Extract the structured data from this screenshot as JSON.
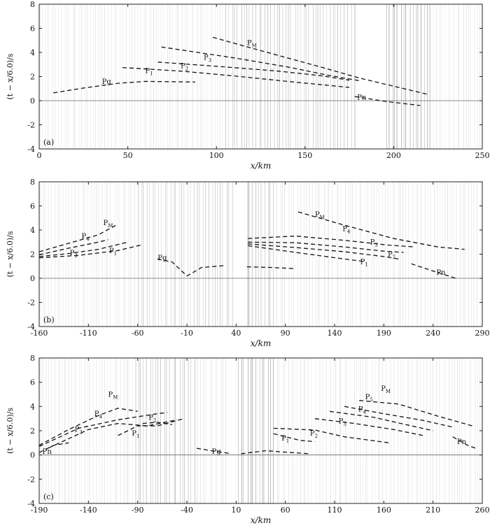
{
  "chart_data": [
    {
      "type": "scatter",
      "panel_label": "(a)",
      "ylabel": "(t − x/6.0)/s",
      "xlabel": "x/km",
      "xlim": [
        0,
        250
      ],
      "ylim": [
        -4,
        8
      ],
      "xticks": [
        0,
        50,
        100,
        150,
        200,
        250
      ],
      "yticks": [
        -4,
        -2,
        0,
        2,
        4,
        6,
        8
      ],
      "phase_labels": [
        {
          "text": "Pg",
          "x": 38,
          "y": 1.4
        },
        {
          "text": "P1",
          "x": 62,
          "y": 2.3
        },
        {
          "text": "P2",
          "x": 82,
          "y": 2.7
        },
        {
          "text": "P3",
          "x": 95,
          "y": 3.4
        },
        {
          "text": "PM",
          "x": 120,
          "y": 4.6
        },
        {
          "text": "Pn",
          "x": 182,
          "y": 0.1
        }
      ],
      "series": [
        {
          "name": "Pg",
          "points": [
            [
              8,
              0.65
            ],
            [
              25,
              1.05
            ],
            [
              45,
              1.45
            ],
            [
              60,
              1.6
            ],
            [
              88,
              1.55
            ]
          ]
        },
        {
          "name": "P1",
          "points": [
            [
              47,
              2.75
            ],
            [
              80,
              2.45
            ],
            [
              110,
              2.05
            ],
            [
              140,
              1.6
            ],
            [
              175,
              1.1
            ]
          ]
        },
        {
          "name": "P2",
          "points": [
            [
              67,
              3.2
            ],
            [
              100,
              2.85
            ],
            [
              135,
              2.45
            ],
            [
              160,
              2.05
            ],
            [
              175,
              1.7
            ]
          ]
        },
        {
          "name": "P3",
          "points": [
            [
              69,
              4.45
            ],
            [
              110,
              3.55
            ],
            [
              140,
              2.8
            ],
            [
              165,
              2.05
            ],
            [
              181,
              1.65
            ]
          ]
        },
        {
          "name": "PM",
          "points": [
            [
              98,
              5.25
            ],
            [
              130,
              3.95
            ],
            [
              160,
              2.75
            ],
            [
              180,
              1.9
            ],
            [
              220,
              0.5
            ]
          ]
        },
        {
          "name": "Pn",
          "points": [
            [
              178,
              0.35
            ],
            [
              195,
              -0.05
            ],
            [
              215,
              -0.4
            ]
          ]
        }
      ]
    },
    {
      "type": "scatter",
      "panel_label": "(b)",
      "ylabel": "(t − x/6.0)/s",
      "xlabel": "x/km",
      "xlim": [
        -160,
        290
      ],
      "ylim": [
        -4,
        8
      ],
      "xticks": [
        -160,
        -110,
        -60,
        -10,
        40,
        90,
        140,
        190,
        240,
        290
      ],
      "yticks": [
        -4,
        -2,
        0,
        2,
        4,
        6,
        8
      ],
      "phase_labels": [
        {
          "text": "PM",
          "x": -90,
          "y": 4.4
        },
        {
          "text": "P4",
          "x": -113,
          "y": 3.3
        },
        {
          "text": "P3",
          "x": -125,
          "y": 1.9
        },
        {
          "text": "P1",
          "x": -85,
          "y": 2.1
        },
        {
          "text": "Pg",
          "x": -35,
          "y": 1.5
        },
        {
          "text": "PM",
          "x": 125,
          "y": 5.1
        },
        {
          "text": "P4",
          "x": 152,
          "y": 3.9
        },
        {
          "text": "P3",
          "x": 180,
          "y": 2.8
        },
        {
          "text": "P2",
          "x": 198,
          "y": 1.8
        },
        {
          "text": "P1",
          "x": 170,
          "y": 1.2
        },
        {
          "text": "Pn",
          "x": 248,
          "y": 0.3
        }
      ],
      "series": [
        {
          "name": "PM (west)",
          "points": [
            [
              -160,
              2.2
            ],
            [
              -130,
              2.9
            ],
            [
              -100,
              3.6
            ],
            [
              -82,
              4.4
            ]
          ]
        },
        {
          "name": "P4 (west)",
          "points": [
            [
              -160,
              1.95
            ],
            [
              -130,
              2.5
            ],
            [
              -100,
              3.0
            ],
            [
              -90,
              3.2
            ]
          ]
        },
        {
          "name": "P3 (west)",
          "points": [
            [
              -160,
              1.8
            ],
            [
              -130,
              2.05
            ],
            [
              -100,
              2.4
            ],
            [
              -70,
              3.0
            ]
          ]
        },
        {
          "name": "P1 (west)",
          "points": [
            [
              -160,
              1.7
            ],
            [
              -120,
              1.9
            ],
            [
              -80,
              2.3
            ],
            [
              -57,
              2.75
            ]
          ]
        },
        {
          "name": "Pg (centre)",
          "points": [
            [
              -40,
              1.6
            ],
            [
              -25,
              1.35
            ],
            [
              -10,
              0.2
            ],
            [
              5,
              0.9
            ],
            [
              28,
              1.05
            ]
          ]
        },
        {
          "name": "Pg (east)",
          "points": [
            [
              51,
              0.95
            ],
            [
              75,
              0.9
            ],
            [
              100,
              0.8
            ]
          ]
        },
        {
          "name": "PM (east)",
          "points": [
            [
              103,
              5.5
            ],
            [
              150,
              4.4
            ],
            [
              200,
              3.3
            ],
            [
              245,
              2.6
            ],
            [
              272,
              2.4
            ]
          ]
        },
        {
          "name": "P4 (east)",
          "points": [
            [
              52,
              3.3
            ],
            [
              100,
              3.5
            ],
            [
              150,
              3.15
            ],
            [
              195,
              2.75
            ],
            [
              222,
              2.6
            ]
          ]
        },
        {
          "name": "P3 (east)",
          "points": [
            [
              52,
              3.0
            ],
            [
              100,
              2.95
            ],
            [
              150,
              2.6
            ],
            [
              190,
              2.25
            ],
            [
              210,
              2.15
            ]
          ]
        },
        {
          "name": "P2 (east)",
          "points": [
            [
              52,
              2.85
            ],
            [
              100,
              2.55
            ],
            [
              150,
              2.2
            ],
            [
              190,
              1.8
            ],
            [
              205,
              1.6
            ]
          ]
        },
        {
          "name": "P1 (east)",
          "points": [
            [
              52,
              2.7
            ],
            [
              100,
              2.15
            ],
            [
              150,
              1.6
            ],
            [
              170,
              1.4
            ]
          ]
        },
        {
          "name": "Pn (east)",
          "points": [
            [
              218,
              1.2
            ],
            [
              240,
              0.6
            ],
            [
              265,
              -0.05
            ]
          ]
        }
      ]
    },
    {
      "type": "scatter",
      "panel_label": "(c)",
      "ylabel": "(t − x/6.0)/s",
      "xlabel": "x/km",
      "xlim": [
        -190,
        260
      ],
      "ylim": [
        -4,
        8
      ],
      "xticks": [
        -190,
        -140,
        -90,
        -40,
        10,
        60,
        110,
        160,
        210,
        260
      ],
      "yticks": [
        -4,
        -2,
        0,
        2,
        4,
        6,
        8
      ],
      "phase_labels": [
        {
          "text": "PM",
          "x": -115,
          "y": 4.8
        },
        {
          "text": "P4",
          "x": -130,
          "y": 3.2
        },
        {
          "text": "P3",
          "x": -150,
          "y": 1.9
        },
        {
          "text": "P1",
          "x": -92,
          "y": 1.6
        },
        {
          "text": "P2",
          "x": -75,
          "y": 2.9
        },
        {
          "text": "Pn",
          "x": -182,
          "y": 0.1
        },
        {
          "text": "Pg",
          "x": -10,
          "y": 0.1
        },
        {
          "text": "P1",
          "x": 60,
          "y": 1.2
        },
        {
          "text": "P2",
          "x": 89,
          "y": 1.6
        },
        {
          "text": "P3",
          "x": 118,
          "y": 2.6
        },
        {
          "text": "P4",
          "x": 138,
          "y": 3.6
        },
        {
          "text": "P5",
          "x": 145,
          "y": 4.6
        },
        {
          "text": "PM",
          "x": 162,
          "y": 5.3
        },
        {
          "text": "Pn",
          "x": 239,
          "y": 0.9
        }
      ],
      "series": [
        {
          "name": "PM (west)",
          "points": [
            [
              -190,
              0.8
            ],
            [
              -160,
              2.1
            ],
            [
              -130,
              3.25
            ],
            [
              -110,
              3.85
            ],
            [
              -90,
              3.6
            ]
          ]
        },
        {
          "name": "P4 (west)",
          "points": [
            [
              -190,
              0.7
            ],
            [
              -150,
              2.2
            ],
            [
              -110,
              2.9
            ],
            [
              -70,
              3.4
            ],
            [
              -60,
              3.5
            ]
          ]
        },
        {
          "name": "P3 (west)",
          "points": [
            [
              -180,
              0.6
            ],
            [
              -140,
              2.1
            ],
            [
              -110,
              2.6
            ],
            [
              -80,
              2.4
            ],
            [
              -50,
              2.9
            ]
          ]
        },
        {
          "name": "P1 (west)",
          "points": [
            [
              -110,
              1.6
            ],
            [
              -90,
              2.4
            ],
            [
              -70,
              2.4
            ],
            [
              -43,
              3.0
            ]
          ]
        },
        {
          "name": "P2 (west)",
          "points": [
            [
              -85,
              2.6
            ],
            [
              -70,
              2.7
            ],
            [
              -55,
              2.5
            ]
          ]
        },
        {
          "name": "Pn (west)",
          "points": [
            [
              -190,
              0.2
            ],
            [
              -175,
              0.8
            ],
            [
              -160,
              1.0
            ]
          ]
        },
        {
          "name": "Pg (west)",
          "points": [
            [
              -30,
              0.55
            ],
            [
              -15,
              0.35
            ],
            [
              5,
              0.1
            ]
          ]
        },
        {
          "name": "Pg (east)",
          "points": [
            [
              15,
              0.1
            ],
            [
              40,
              0.35
            ],
            [
              65,
              0.2
            ],
            [
              85,
              0.1
            ]
          ]
        },
        {
          "name": "P1 (east)",
          "points": [
            [
              48,
              1.75
            ],
            [
              75,
              1.2
            ],
            [
              90,
              1.1
            ]
          ]
        },
        {
          "name": "P2 (east)",
          "points": [
            [
              48,
              2.2
            ],
            [
              90,
              2.05
            ],
            [
              120,
              1.5
            ],
            [
              165,
              1.0
            ]
          ]
        },
        {
          "name": "P3 (east)",
          "points": [
            [
              90,
              3.0
            ],
            [
              130,
              2.6
            ],
            [
              170,
              2.1
            ],
            [
              200,
              1.6
            ]
          ]
        },
        {
          "name": "P4 (east)",
          "points": [
            [
              105,
              3.6
            ],
            [
              150,
              3.1
            ],
            [
              180,
              2.55
            ],
            [
              210,
              2.0
            ]
          ]
        },
        {
          "name": "P5 (east)",
          "points": [
            [
              120,
              4.0
            ],
            [
              160,
              3.4
            ],
            [
              200,
              2.85
            ],
            [
              230,
              2.3
            ]
          ]
        },
        {
          "name": "PM (east)",
          "points": [
            [
              135,
              4.5
            ],
            [
              175,
              4.2
            ],
            [
              215,
              3.2
            ],
            [
              250,
              2.4
            ]
          ]
        },
        {
          "name": "Pn (east)",
          "points": [
            [
              230,
              1.5
            ],
            [
              245,
              0.8
            ],
            [
              255,
              0.5
            ]
          ]
        }
      ]
    }
  ]
}
